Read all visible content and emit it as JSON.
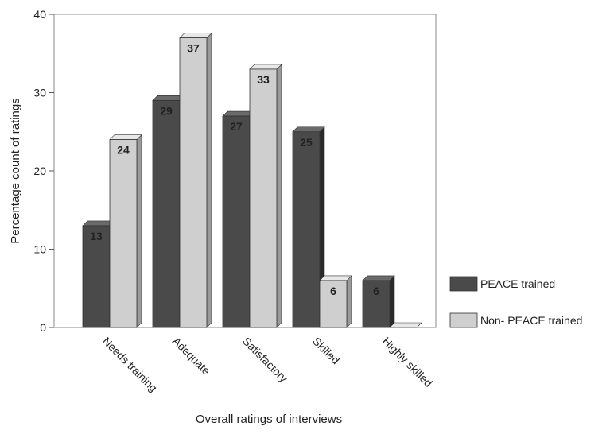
{
  "chart_data": {
    "type": "bar",
    "title": "",
    "xlabel": "Overall ratings of interviews",
    "ylabel": "Percentage count of ratings",
    "ylim": [
      0,
      40
    ],
    "yticks": [
      0,
      10,
      20,
      30,
      40
    ],
    "grid": false,
    "legend_position": "right",
    "categories": [
      "Needs training",
      "Adequate",
      "Satisfactory",
      "Skilled",
      "Highly skilled"
    ],
    "series": [
      {
        "name": "PEACE trained",
        "values": [
          13,
          29,
          27,
          25,
          6
        ],
        "labels": [
          "13",
          "29",
          "27",
          "25",
          "6"
        ],
        "color": "#4a4a4a"
      },
      {
        "name": "Non- PEACE trained",
        "values": [
          24,
          37,
          33,
          6,
          0
        ],
        "labels": [
          "24",
          "37",
          "33",
          "6",
          ""
        ],
        "color": "#cfcfcf"
      }
    ]
  }
}
